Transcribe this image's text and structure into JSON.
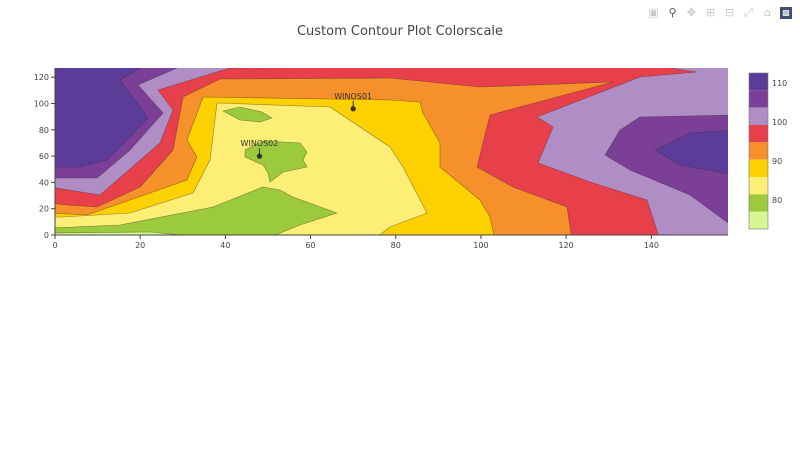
{
  "chart_data": {
    "type": "contour",
    "title": "Custom Contour Plot Colorscale",
    "xlabel": "",
    "ylabel": "",
    "xlim": [
      0,
      158
    ],
    "ylim": [
      0,
      127
    ],
    "x_ticks": [
      "0",
      "20",
      "40",
      "60",
      "80",
      "100",
      "120",
      "140"
    ],
    "y_ticks": [
      "0",
      "20",
      "40",
      "60",
      "80",
      "100",
      "120"
    ],
    "colorbar": {
      "ticks": [
        "110",
        "100",
        "90",
        "80"
      ],
      "colors": [
        "#5b3d99",
        "#7c3f98",
        "#b18dc5",
        "#e8404a",
        "#f5902a",
        "#fdd000",
        "#fdee75",
        "#9bca3c",
        "#d8f792"
      ]
    },
    "annotations": [
      {
        "text": "WINOS01",
        "x": 70,
        "y": 96
      },
      {
        "text": "WINOS02",
        "x": 48,
        "y": 60
      }
    ],
    "grid": false
  },
  "modebar": {
    "icons": [
      "camera-icon",
      "zoom-icon",
      "pan-icon",
      "zoom-in-icon",
      "zoom-out-icon",
      "autoscale-icon",
      "home-icon",
      "plotly-logo-icon"
    ]
  }
}
